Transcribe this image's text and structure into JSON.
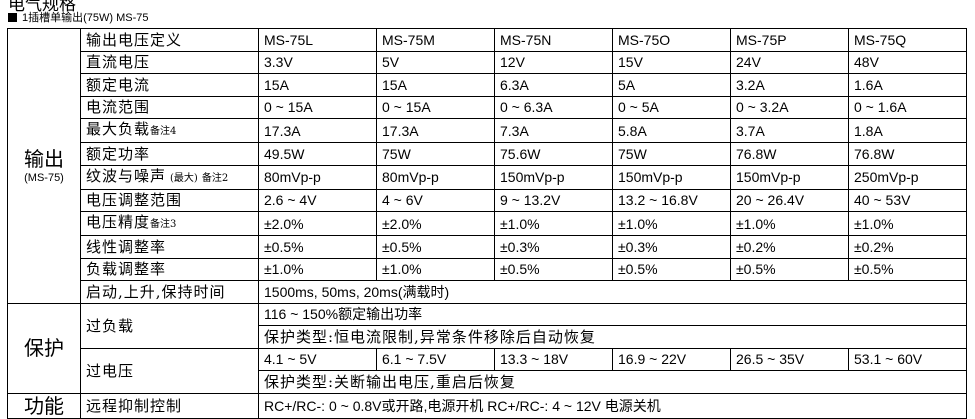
{
  "header": {
    "title": "电气规格",
    "subtitle": "1插槽单输出(75W) MS-75"
  },
  "output": {
    "group": "输出",
    "group_note": "(MS-75)",
    "columns_label": "输出电压定义",
    "models": [
      "MS-75L",
      "MS-75M",
      "MS-75N",
      "MS-75O",
      "MS-75P",
      "MS-75Q"
    ],
    "rows": [
      {
        "label": "直流电压",
        "values": [
          "3.3V",
          "5V",
          "12V",
          "15V",
          "24V",
          "48V"
        ]
      },
      {
        "label": "额定电流",
        "values": [
          "15A",
          "15A",
          "6.3A",
          "5A",
          "3.2A",
          "1.6A"
        ]
      },
      {
        "label": "电流范围",
        "values": [
          "0 ~ 15A",
          "0 ~ 15A",
          "0 ~ 6.3A",
          "0 ~ 5A",
          "0 ~ 3.2A",
          "0 ~ 1.6A"
        ]
      },
      {
        "label": "最大负载",
        "note": "备注4",
        "values": [
          "17.3A",
          "17.3A",
          "7.3A",
          "5.8A",
          "3.7A",
          "1.8A"
        ]
      },
      {
        "label": "额定功率",
        "values": [
          "49.5W",
          "75W",
          "75.6W",
          "75W",
          "76.8W",
          "76.8W"
        ]
      },
      {
        "label": "纹波与噪声",
        "small": "(最大)",
        "note": "备注2",
        "values": [
          "80mVp-p",
          "80mVp-p",
          "150mVp-p",
          "150mVp-p",
          "150mVp-p",
          "250mVp-p"
        ]
      },
      {
        "label": "电压调整范围",
        "values": [
          "2.6 ~ 4V",
          "4 ~ 6V",
          "9 ~ 13.2V",
          "13.2 ~ 16.8V",
          "20 ~ 26.4V",
          "40 ~ 53V"
        ]
      },
      {
        "label": "电压精度",
        "note": "备注3",
        "values": [
          "±2.0%",
          "±2.0%",
          "±1.0%",
          "±1.0%",
          "±1.0%",
          "±1.0%"
        ]
      },
      {
        "label": "线性调整率",
        "values": [
          "±0.5%",
          "±0.5%",
          "±0.3%",
          "±0.3%",
          "±0.2%",
          "±0.2%"
        ]
      },
      {
        "label": "负载调整率",
        "values": [
          "±1.0%",
          "±1.0%",
          "±0.5%",
          "±0.5%",
          "±0.5%",
          "±0.5%"
        ]
      }
    ],
    "timing": {
      "label": "启动,上升,保持时间",
      "value": "1500ms, 50ms, 20ms(满载时)"
    }
  },
  "protection": {
    "group": "保护",
    "overload": {
      "label": "过负载",
      "range": "116 ~ 150%额定输出功率",
      "type": "保护类型:恒电流限制,异常条件移除后自动恢复"
    },
    "overvoltage": {
      "label": "过电压",
      "values": [
        "4.1 ~ 5V",
        "6.1 ~ 7.5V",
        "13.3 ~ 18V",
        "16.9 ~ 22V",
        "26.5 ~ 35V",
        "53.1 ~ 60V"
      ],
      "type": "保护类型:关断输出电压,重启后恢复"
    }
  },
  "function": {
    "group": "功能",
    "label": "远程抑制控制",
    "value": "RC+/RC-: 0 ~ 0.8V或开路,电源开机    RC+/RC-: 4 ~ 12V 电源关机"
  }
}
